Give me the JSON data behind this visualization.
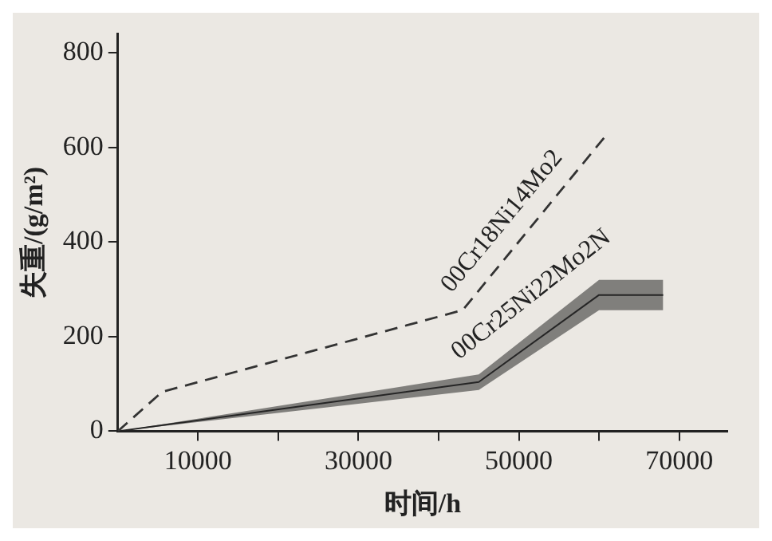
{
  "chart_data": {
    "type": "line",
    "xlabel": "时间/h",
    "ylabel": "失重/(g/m²)",
    "xlim": [
      0,
      76000
    ],
    "ylim": [
      0,
      840
    ],
    "xticks": [
      {
        "value": 10000,
        "label": "10000"
      },
      {
        "value": 20000,
        "label": null
      },
      {
        "value": 30000,
        "label": "30000"
      },
      {
        "value": 40000,
        "label": null
      },
      {
        "value": 50000,
        "label": "50000"
      },
      {
        "value": 60000,
        "label": null
      },
      {
        "value": 70000,
        "label": "70000"
      }
    ],
    "yticks": [
      0,
      200,
      400,
      600,
      800
    ],
    "grid": false,
    "legend": false,
    "marker": "none",
    "series": [
      {
        "name": "00Cr18Ni14Mo2",
        "color": "#333333",
        "line_style": "dashed",
        "x": [
          0,
          5500,
          43000,
          61000
        ],
        "values": [
          0,
          83,
          256,
          628
        ]
      },
      {
        "name": "00Cr25Ni22Mo2N",
        "color": "#222222",
        "line_style": "solid",
        "x": [
          0,
          45000,
          60000,
          68000
        ],
        "values": [
          0,
          104,
          288,
          288
        ],
        "lower": [
          0,
          87,
          256,
          256
        ],
        "upper": [
          0,
          120,
          320,
          320
        ]
      }
    ]
  }
}
